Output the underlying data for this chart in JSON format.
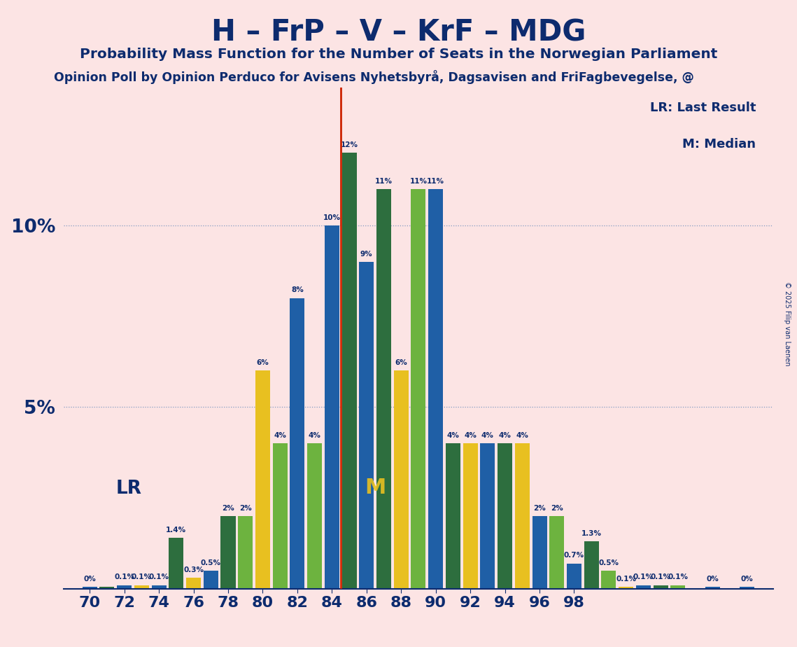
{
  "title": "H – FrP – V – KrF – MDG",
  "subtitle1": "Probability Mass Function for the Number of Seats in the Norwegian Parliament",
  "subtitle2": "Opinion Poll by Opinion Perduco for Avisens Nyhetsbyrå, Dagsavisen and FriFagbevegelse, @",
  "copyright": "© 2025 Filip van Laenen",
  "background_color": "#fce4e4",
  "text_color": "#0d2b6e",
  "grid_color": "#1f5fa6",
  "lr_color": "#cc2200",
  "median_color": "#e8c020",
  "blue_color": "#1f5fa6",
  "dark_green_color": "#2d6e3e",
  "yellow_color": "#e8c020",
  "light_green_color": "#6db33f",
  "lr_line_x": 84.5,
  "ylim": [
    0,
    13.8
  ],
  "lr_label": "LR: Last Result",
  "median_label": "M: Median",
  "bars": [
    {
      "x": 70,
      "color": "blue",
      "val": 0.05,
      "label": "0%"
    },
    {
      "x": 71,
      "color": "dark_green",
      "val": 0.05,
      "label": ""
    },
    {
      "x": 72,
      "color": "blue",
      "val": 0.1,
      "label": "0.1%"
    },
    {
      "x": 73,
      "color": "yellow",
      "val": 0.1,
      "label": "0.1%"
    },
    {
      "x": 74,
      "color": "blue",
      "val": 0.1,
      "label": "0.1%"
    },
    {
      "x": 75,
      "color": "dark_green",
      "val": 1.4,
      "label": "1.4%"
    },
    {
      "x": 76,
      "color": "yellow",
      "val": 0.3,
      "label": "0.3%"
    },
    {
      "x": 77,
      "color": "blue",
      "val": 0.5,
      "label": "0.5%"
    },
    {
      "x": 78,
      "color": "dark_green",
      "val": 2.0,
      "label": "2%"
    },
    {
      "x": 79,
      "color": "light_green",
      "val": 2.0,
      "label": "2%"
    },
    {
      "x": 80,
      "color": "yellow",
      "val": 6.0,
      "label": "6%"
    },
    {
      "x": 81,
      "color": "light_green",
      "val": 4.0,
      "label": "4%"
    },
    {
      "x": 82,
      "color": "blue",
      "val": 8.0,
      "label": "8%"
    },
    {
      "x": 83,
      "color": "light_green",
      "val": 4.0,
      "label": "4%"
    },
    {
      "x": 84,
      "color": "blue",
      "val": 10.0,
      "label": "10%"
    },
    {
      "x": 85,
      "color": "dark_green",
      "val": 12.0,
      "label": "12%"
    },
    {
      "x": 86,
      "color": "blue",
      "val": 9.0,
      "label": "9%"
    },
    {
      "x": 87,
      "color": "dark_green",
      "val": 11.0,
      "label": "11%"
    },
    {
      "x": 88,
      "color": "yellow",
      "val": 6.0,
      "label": "6%"
    },
    {
      "x": 89,
      "color": "light_green",
      "val": 11.0,
      "label": "11%"
    },
    {
      "x": 90,
      "color": "blue",
      "val": 11.0,
      "label": "11%"
    },
    {
      "x": 91,
      "color": "dark_green",
      "val": 4.0,
      "label": "4%"
    },
    {
      "x": 92,
      "color": "yellow",
      "val": 4.0,
      "label": "4%"
    },
    {
      "x": 93,
      "color": "blue",
      "val": 4.0,
      "label": "4%"
    },
    {
      "x": 94,
      "color": "dark_green",
      "val": 4.0,
      "label": "4%"
    },
    {
      "x": 95,
      "color": "yellow",
      "val": 4.0,
      "label": "4%"
    },
    {
      "x": 96,
      "color": "blue",
      "val": 2.0,
      "label": "2%"
    },
    {
      "x": 97,
      "color": "light_green",
      "val": 2.0,
      "label": "2%"
    },
    {
      "x": 98,
      "color": "blue",
      "val": 0.7,
      "label": "0.7%"
    },
    {
      "x": 99,
      "color": "dark_green",
      "val": 1.3,
      "label": "1.3%"
    },
    {
      "x": 100,
      "color": "light_green",
      "val": 0.5,
      "label": "0.5%"
    },
    {
      "x": 101,
      "color": "yellow",
      "val": 0.05,
      "label": "0.1%"
    },
    {
      "x": 102,
      "color": "blue",
      "val": 0.1,
      "label": "0.1%"
    },
    {
      "x": 103,
      "color": "dark_green",
      "val": 0.1,
      "label": "0.1%"
    },
    {
      "x": 104,
      "color": "light_green",
      "val": 0.1,
      "label": "0.1%"
    },
    {
      "x": 106,
      "color": "blue",
      "val": 0.05,
      "label": "0%"
    },
    {
      "x": 108,
      "color": "blue",
      "val": 0.05,
      "label": "0%"
    }
  ],
  "xticks": [
    70,
    72,
    74,
    76,
    78,
    80,
    82,
    84,
    86,
    88,
    90,
    92,
    94,
    96,
    98
  ],
  "xlim": [
    68.5,
    109.5
  ]
}
